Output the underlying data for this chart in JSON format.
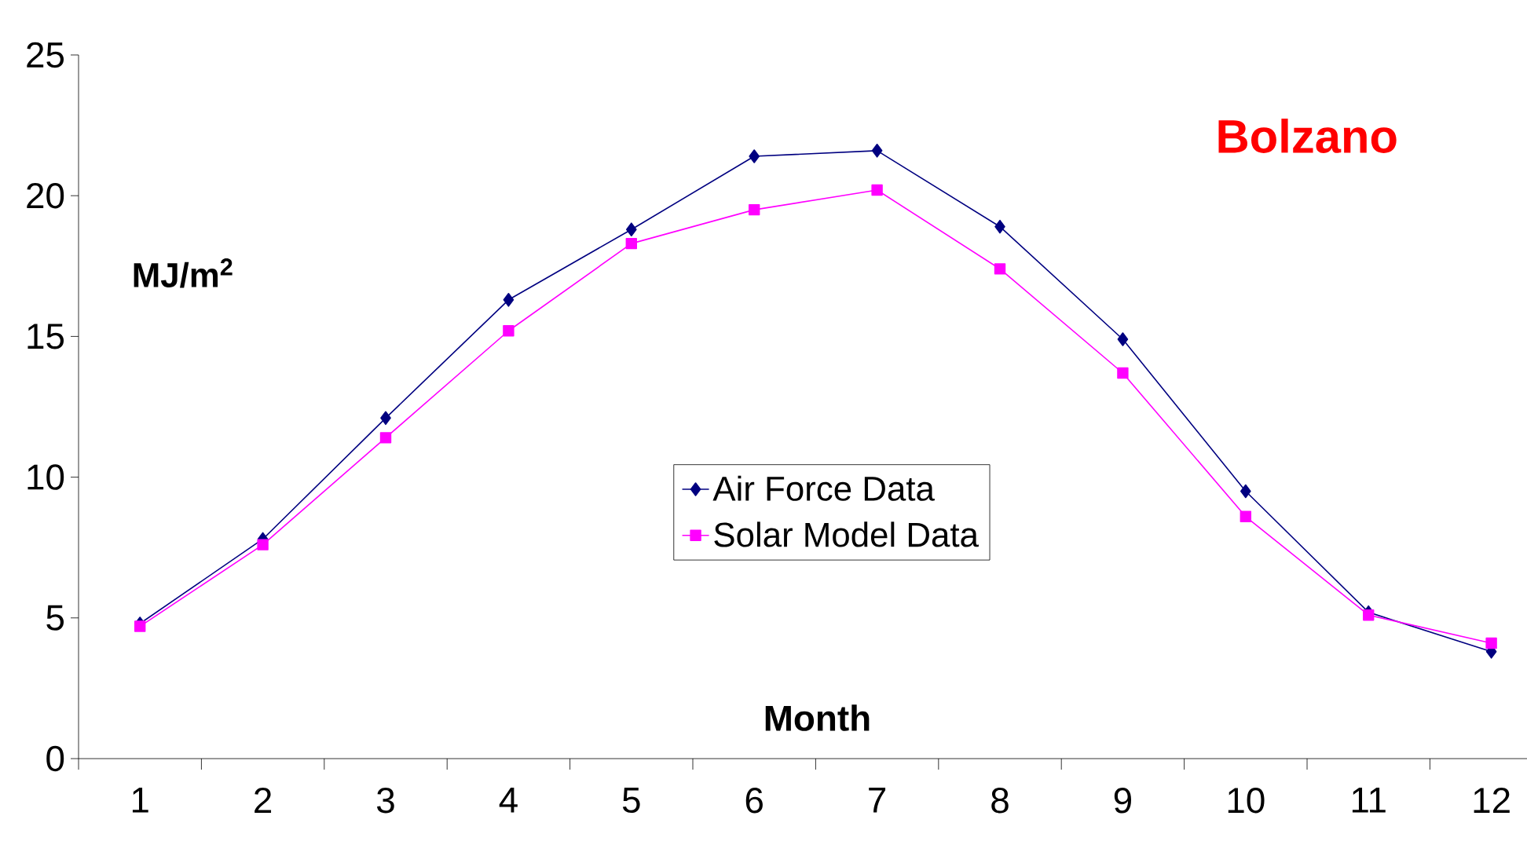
{
  "chart_data": {
    "type": "line",
    "title": "Bolzano",
    "xlabel": "Month",
    "ylabel": "MJ/m$^{2}$",
    "categories": [
      "1",
      "2",
      "3",
      "4",
      "5",
      "6",
      "7",
      "8",
      "9",
      "10",
      "11",
      "12"
    ],
    "series": [
      {
        "name": "Air Force Data",
        "color": "#000080",
        "marker": "diamond",
        "values": [
          4.8,
          7.8,
          12.1,
          16.3,
          18.8,
          21.4,
          21.6,
          18.9,
          14.9,
          9.5,
          5.2,
          3.8
        ]
      },
      {
        "name": "Solar Model Data",
        "color": "#ff00ff",
        "marker": "square",
        "values": [
          4.7,
          7.6,
          11.4,
          15.2,
          18.3,
          19.5,
          20.2,
          17.4,
          13.7,
          8.6,
          5.1,
          4.1
        ]
      }
    ],
    "ylim": [
      0,
      25
    ],
    "yticks": [
      0,
      5,
      10,
      15,
      20,
      25
    ],
    "grid": false,
    "legend": "center",
    "line_style": "solid"
  }
}
